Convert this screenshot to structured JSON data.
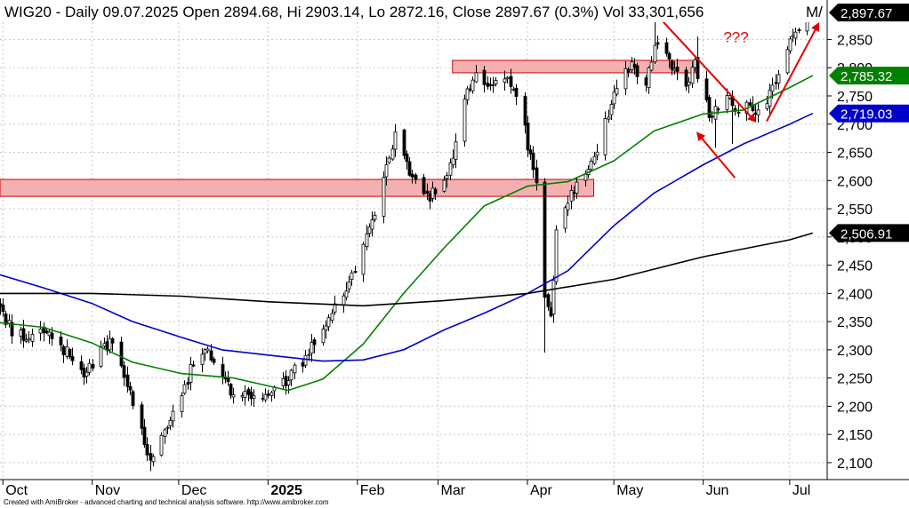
{
  "header": {
    "title": "WIG20 - Daily 09.07.2025 Open 2894.68, Hi 2903.14, Lo 2872.16, Close 2897.67 (0.3%) Vol 33,301,656",
    "ma_fragment": "M/",
    "ma_color": "#008000"
  },
  "footer": {
    "text": "Created with AmiBroker - advanced charting and technical analysis software. http://www.amibroker.com"
  },
  "chart_data": {
    "type": "candlestick",
    "instrument": "WIG20",
    "interval": "Daily",
    "ylim": [
      2070,
      2920
    ],
    "y_ticks": [
      2100,
      2150,
      2200,
      2250,
      2300,
      2350,
      2400,
      2450,
      2500,
      2550,
      2600,
      2650,
      2700,
      2750,
      2800,
      2850
    ],
    "y_tick_labels": [
      "2,100",
      "2,150",
      "2,200",
      "2,250",
      "2,300",
      "2,350",
      "2,400",
      "2,450",
      "2,500",
      "2,550",
      "2,600",
      "2,650",
      "2,700",
      "2,750",
      "2,800",
      "2,850"
    ],
    "x_domain": [
      "2024-09-30",
      "2025-07-14"
    ],
    "x_months": [
      {
        "date": "2024-10-01",
        "label": "Oct",
        "bold": false
      },
      {
        "date": "2024-11-01",
        "label": "Nov",
        "bold": false
      },
      {
        "date": "2024-12-01",
        "label": "Dec",
        "bold": false
      },
      {
        "date": "2025-01-01",
        "label": "2025",
        "bold": true
      },
      {
        "date": "2025-02-01",
        "label": "Feb",
        "bold": false
      },
      {
        "date": "2025-03-01",
        "label": "Mar",
        "bold": false
      },
      {
        "date": "2025-04-01",
        "label": "Apr",
        "bold": false
      },
      {
        "date": "2025-05-01",
        "label": "May",
        "bold": false
      },
      {
        "date": "2025-06-01",
        "label": "Jun",
        "bold": false
      },
      {
        "date": "2025-07-01",
        "label": "Jul",
        "bold": false
      }
    ],
    "price_path": [
      [
        "2024-09-30",
        2375
      ],
      [
        "2024-10-04",
        2330
      ],
      [
        "2024-10-10",
        2325
      ],
      [
        "2024-10-16",
        2338
      ],
      [
        "2024-10-22",
        2300
      ],
      [
        "2024-10-29",
        2262
      ],
      [
        "2024-11-04",
        2295
      ],
      [
        "2024-11-08",
        2320
      ],
      [
        "2024-11-13",
        2245
      ],
      [
        "2024-11-18",
        2150
      ],
      [
        "2024-11-21",
        2110
      ],
      [
        "2024-11-26",
        2165
      ],
      [
        "2024-12-02",
        2215
      ],
      [
        "2024-12-06",
        2282
      ],
      [
        "2024-12-11",
        2300
      ],
      [
        "2024-12-16",
        2262
      ],
      [
        "2024-12-20",
        2220
      ],
      [
        "2025-01-02",
        2225
      ],
      [
        "2025-01-07",
        2245
      ],
      [
        "2025-01-13",
        2280
      ],
      [
        "2025-01-20",
        2345
      ],
      [
        "2025-01-27",
        2400
      ],
      [
        "2025-02-03",
        2480
      ],
      [
        "2025-02-10",
        2600
      ],
      [
        "2025-02-14",
        2680
      ],
      [
        "2025-02-19",
        2610
      ],
      [
        "2025-02-25",
        2568
      ],
      [
        "2025-03-04",
        2600
      ],
      [
        "2025-03-10",
        2740
      ],
      [
        "2025-03-14",
        2800
      ],
      [
        "2025-03-19",
        2760
      ],
      [
        "2025-03-25",
        2790
      ],
      [
        "2025-03-31",
        2690
      ],
      [
        "2025-04-04",
        2590
      ],
      [
        "2025-04-07",
        2400
      ],
      [
        "2025-04-09",
        2350
      ],
      [
        "2025-04-11",
        2510
      ],
      [
        "2025-04-16",
        2580
      ],
      [
        "2025-04-22",
        2615
      ],
      [
        "2025-04-28",
        2700
      ],
      [
        "2025-05-02",
        2770
      ],
      [
        "2025-05-07",
        2810
      ],
      [
        "2025-05-12",
        2760
      ],
      [
        "2025-05-15",
        2850
      ],
      [
        "2025-05-20",
        2810
      ],
      [
        "2025-05-26",
        2775
      ],
      [
        "2025-05-29",
        2805
      ],
      [
        "2025-06-03",
        2715
      ],
      [
        "2025-06-09",
        2750
      ],
      [
        "2025-06-13",
        2715
      ],
      [
        "2025-06-17",
        2740
      ],
      [
        "2025-06-20",
        2720
      ],
      [
        "2025-06-25",
        2760
      ],
      [
        "2025-06-30",
        2830
      ],
      [
        "2025-07-03",
        2870
      ],
      [
        "2025-07-09",
        2898
      ]
    ],
    "lows": [
      [
        "2024-11-21",
        2085
      ],
      [
        "2025-04-07",
        2295
      ],
      [
        "2025-06-05",
        2658
      ],
      [
        "2025-06-11",
        2665
      ]
    ],
    "highs": [
      [
        "2025-05-15",
        2890
      ],
      [
        "2025-05-30",
        2855
      ],
      [
        "2025-07-09",
        2903
      ]
    ],
    "series": [
      {
        "color": "#008000",
        "last_value": "2,785.32",
        "values": [
          [
            "2024-09-30",
            2348
          ],
          [
            "2024-10-15",
            2340
          ],
          [
            "2024-11-01",
            2312
          ],
          [
            "2024-11-15",
            2278
          ],
          [
            "2024-12-02",
            2258
          ],
          [
            "2024-12-20",
            2250
          ],
          [
            "2025-01-08",
            2228
          ],
          [
            "2025-01-20",
            2248
          ],
          [
            "2025-02-03",
            2310
          ],
          [
            "2025-02-17",
            2400
          ],
          [
            "2025-03-03",
            2480
          ],
          [
            "2025-03-17",
            2555
          ],
          [
            "2025-04-01",
            2590
          ],
          [
            "2025-04-15",
            2598
          ],
          [
            "2025-05-01",
            2635
          ],
          [
            "2025-05-15",
            2688
          ],
          [
            "2025-06-01",
            2718
          ],
          [
            "2025-06-15",
            2725
          ],
          [
            "2025-07-01",
            2765
          ],
          [
            "2025-07-09",
            2786
          ]
        ]
      },
      {
        "color": "#0000cc",
        "last_value": "2,719.03",
        "values": [
          [
            "2024-09-30",
            2433
          ],
          [
            "2024-10-15",
            2410
          ],
          [
            "2024-11-01",
            2382
          ],
          [
            "2024-11-15",
            2350
          ],
          [
            "2024-12-02",
            2322
          ],
          [
            "2024-12-16",
            2300
          ],
          [
            "2025-01-02",
            2290
          ],
          [
            "2025-01-20",
            2280
          ],
          [
            "2025-02-03",
            2282
          ],
          [
            "2025-02-17",
            2300
          ],
          [
            "2025-03-03",
            2335
          ],
          [
            "2025-03-17",
            2365
          ],
          [
            "2025-04-01",
            2400
          ],
          [
            "2025-04-15",
            2440
          ],
          [
            "2025-05-01",
            2520
          ],
          [
            "2025-05-15",
            2578
          ],
          [
            "2025-06-01",
            2628
          ],
          [
            "2025-06-15",
            2665
          ],
          [
            "2025-07-01",
            2700
          ],
          [
            "2025-07-09",
            2719
          ]
        ]
      },
      {
        "color": "#000000",
        "last_value": "2,506.91",
        "values": [
          [
            "2024-09-30",
            2400
          ],
          [
            "2024-11-01",
            2400
          ],
          [
            "2024-12-02",
            2395
          ],
          [
            "2025-01-02",
            2385
          ],
          [
            "2025-02-03",
            2378
          ],
          [
            "2025-03-03",
            2387
          ],
          [
            "2025-04-01",
            2400
          ],
          [
            "2025-05-01",
            2425
          ],
          [
            "2025-06-01",
            2465
          ],
          [
            "2025-07-01",
            2495
          ],
          [
            "2025-07-09",
            2507
          ]
        ]
      }
    ],
    "last_close_label": "2,897.67",
    "last_close": 2897.67,
    "zones": [
      {
        "x_from": "2024-09-30",
        "x_to": "2025-04-24",
        "y_from": 2572,
        "y_to": 2602,
        "color": "#f4b0b0",
        "border": "#cc0000"
      },
      {
        "x_from": "2025-03-06",
        "x_to": "2025-05-30",
        "y_from": 2791,
        "y_to": 2813,
        "color": "#f4b0b0",
        "border": "#cc0000"
      }
    ],
    "arrows": [
      {
        "from": [
          "2025-05-16",
          2893
        ],
        "to": [
          "2025-06-19",
          2705
        ],
        "color": "#e00000"
      },
      {
        "from": [
          "2025-06-12",
          2605
        ],
        "to": [
          "2025-05-30",
          2684
        ],
        "color": "#e00000"
      },
      {
        "from": [
          "2025-06-23",
          2705
        ],
        "to": [
          "2025-07-11",
          2878
        ],
        "color": "#e00000"
      }
    ],
    "annotations": [
      {
        "text": "???",
        "x": "2025-06-08",
        "y": 2845,
        "color": "#e00000"
      }
    ]
  }
}
